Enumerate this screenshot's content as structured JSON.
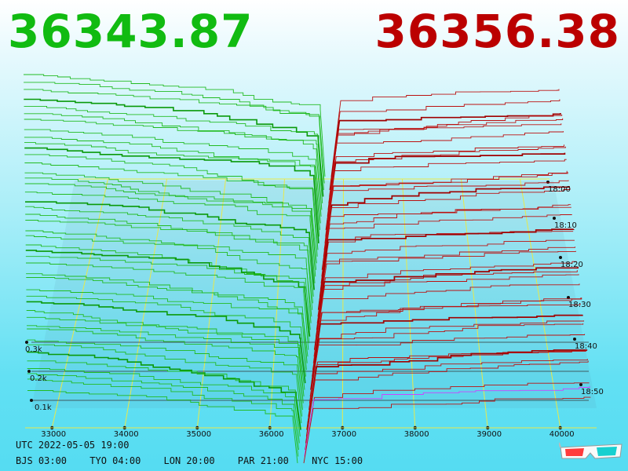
{
  "prices": {
    "bid": "36343.87",
    "ask": "36356.38"
  },
  "colors": {
    "bid": "#11bb11",
    "ask": "#bb0000",
    "grid": "#e8e84a",
    "axis": "#333333",
    "highlight": "#cc44ff"
  },
  "chart_data": {
    "type": "line",
    "title": "",
    "xlabel": "",
    "ylabel": "",
    "x_ticks": [
      "33000",
      "34000",
      "35000",
      "36000",
      "37000",
      "38000",
      "39000",
      "40000"
    ],
    "x_range": [
      32500,
      40500
    ],
    "depth_ticks": [
      "0.1k",
      "0.2k",
      "0.3k"
    ],
    "depth_range": [
      0,
      300
    ],
    "time_ticks": [
      "18:00",
      "18:10",
      "18:20",
      "18:30",
      "18:40",
      "18:50"
    ],
    "mid_price_start": 36350,
    "series": [
      {
        "side": "bid",
        "from": 32500,
        "to": 36340
      },
      {
        "side": "ask",
        "from": 36360,
        "to": 40500
      }
    ],
    "legend": "none",
    "grid": true
  },
  "footer": {
    "utc": "UTC 2022-05-05 19:00",
    "zones": [
      "BJS 03:00",
      "TYO 04:00",
      "LON 20:00",
      "PAR 21:00",
      "NYC 15:00"
    ]
  }
}
